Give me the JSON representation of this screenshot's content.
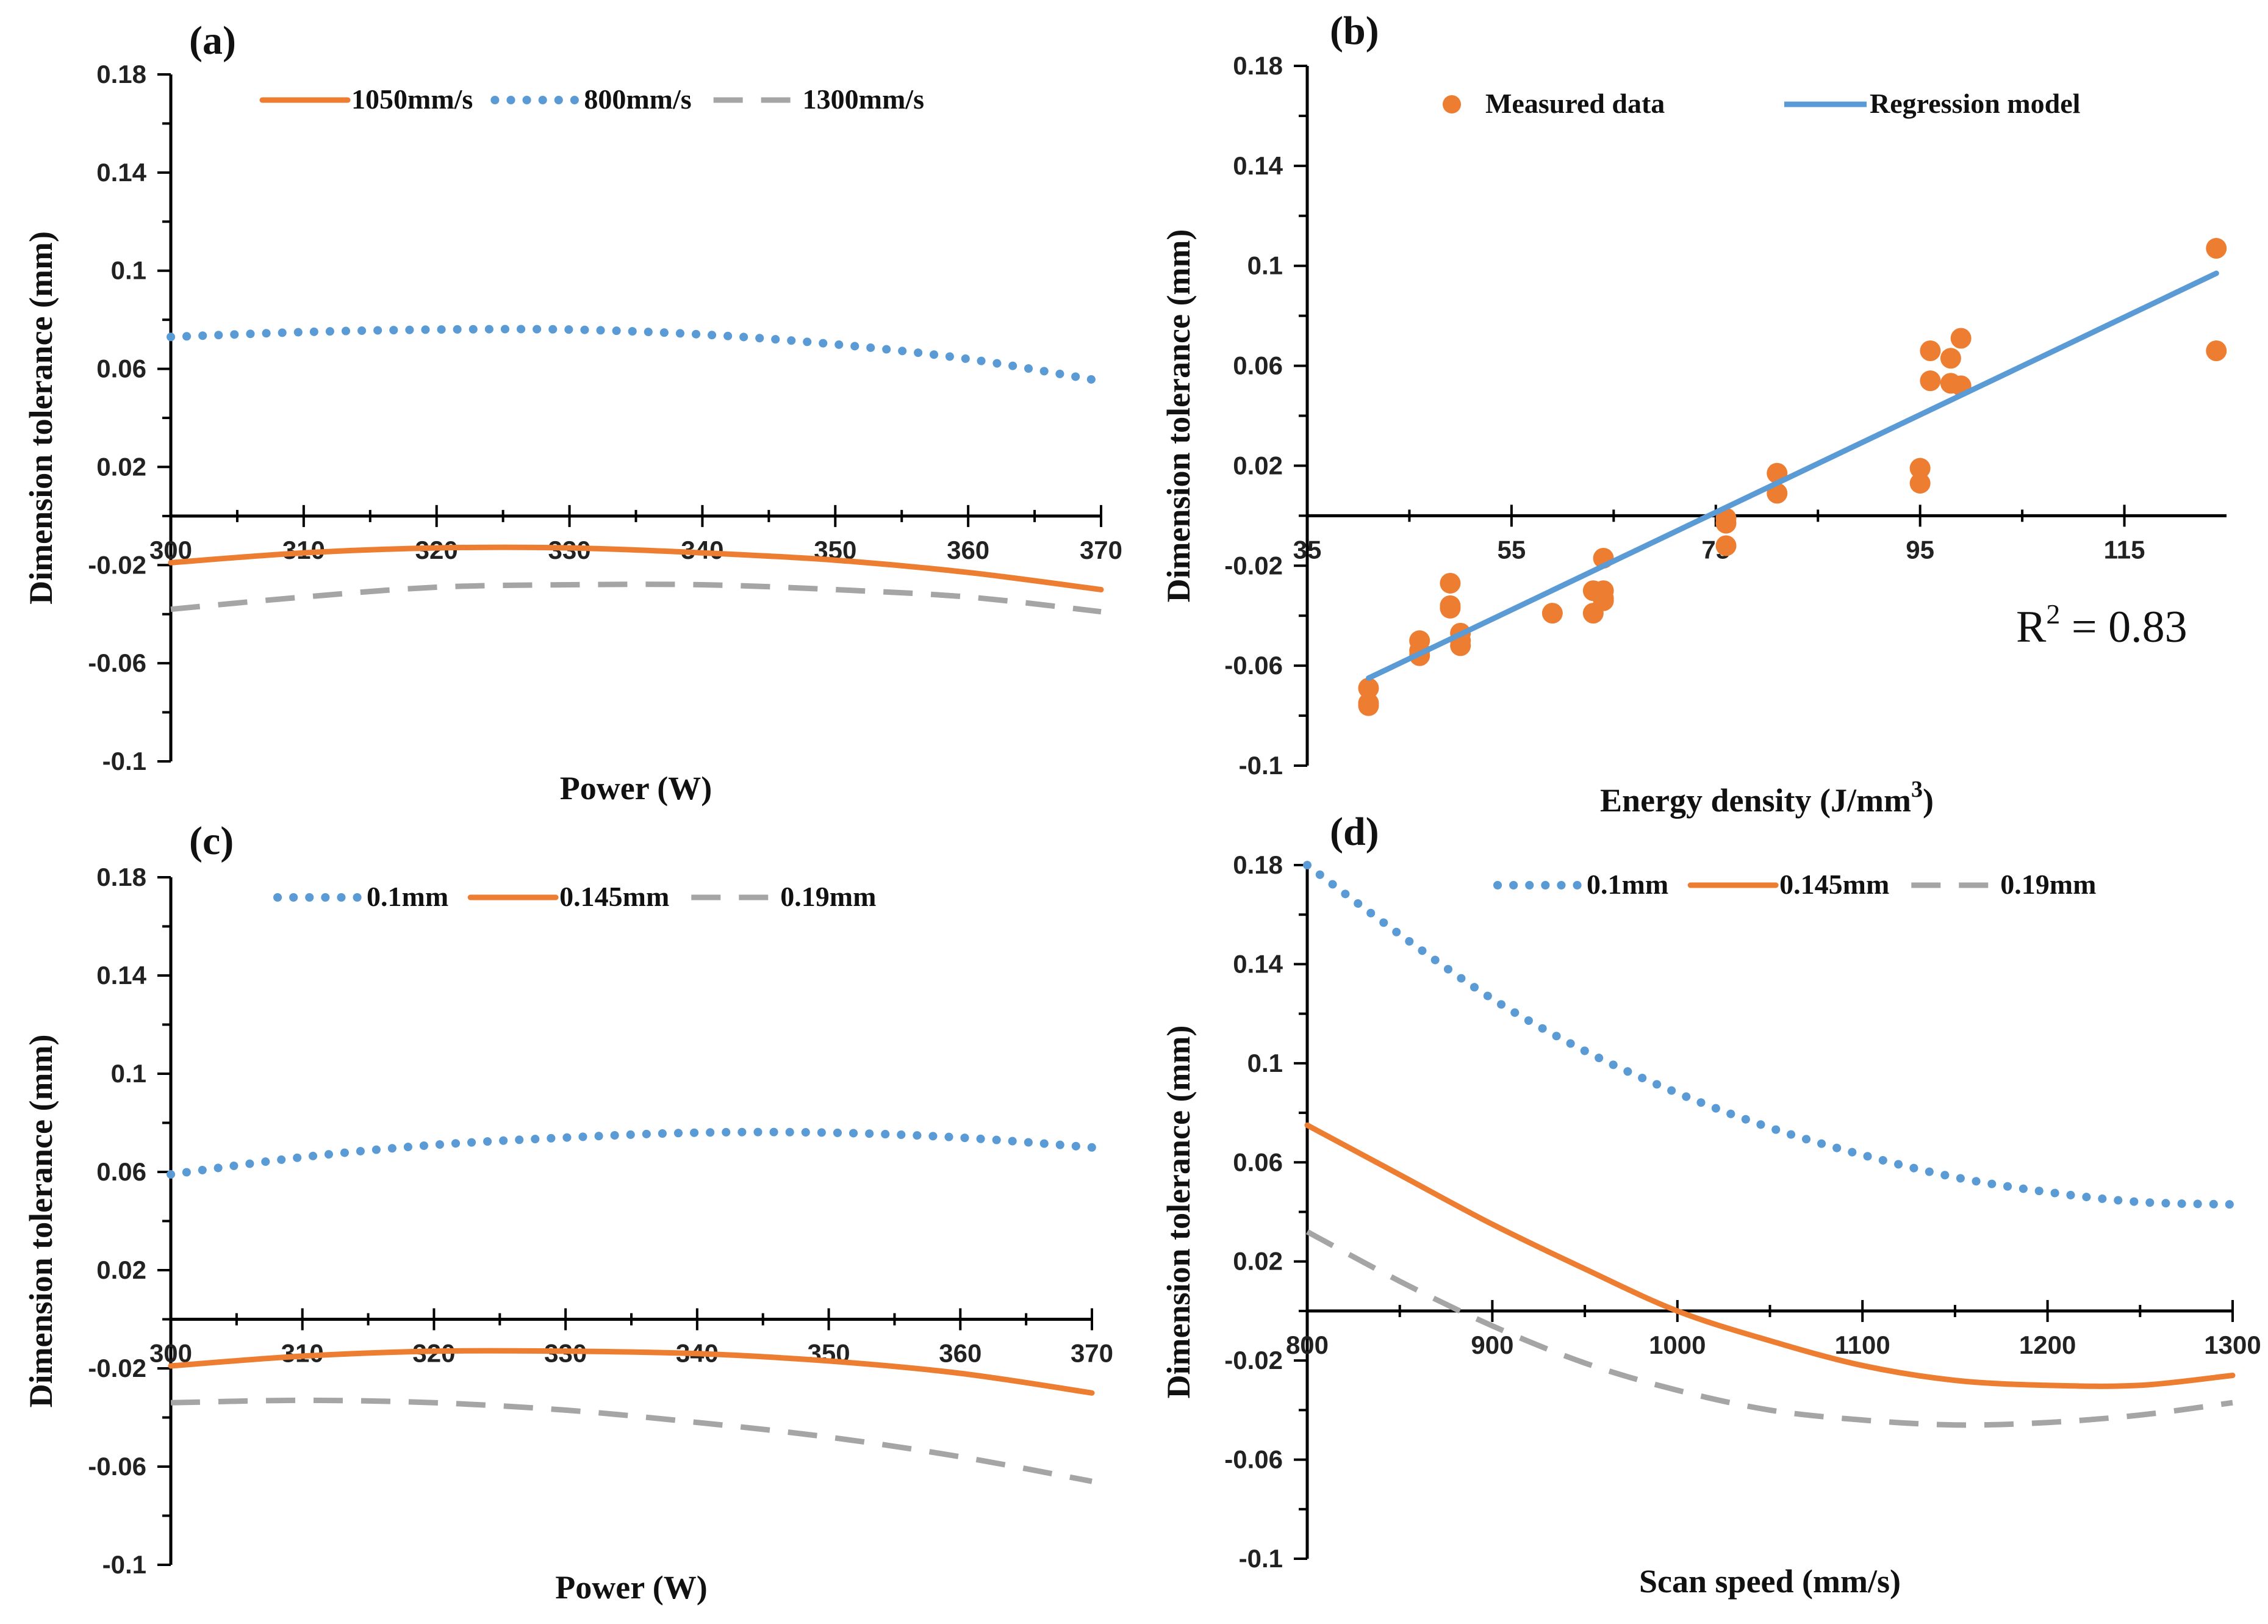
{
  "colors": {
    "orange": "#ED7D31",
    "blue": "#5B9BD5",
    "gray": "#A5A5A5",
    "axis": "#000000"
  },
  "chart_data": [
    {
      "panel": "(a)",
      "type": "line",
      "ylabel": "Dimension tolerance (mm)",
      "xlabel": "Power (W)",
      "xlim": [
        300,
        370
      ],
      "ylim": [
        -0.1,
        0.18
      ],
      "xticks": [
        "300",
        "310",
        "320",
        "330",
        "340",
        "350",
        "360",
        "370"
      ],
      "yticks": [
        "0.18",
        "0.14",
        "0.1",
        "0.06",
        "0.02",
        "-0.02",
        "-0.06",
        "-0.1"
      ],
      "legend_position": "top",
      "series": [
        {
          "name": "1050mm/s",
          "color": "orange",
          "style": "solid",
          "x": [
            300,
            310,
            320,
            330,
            340,
            350,
            360,
            370
          ],
          "values": [
            -0.019,
            -0.015,
            -0.013,
            -0.013,
            -0.015,
            -0.018,
            -0.023,
            -0.03
          ]
        },
        {
          "name": "800mm/s",
          "color": "blue",
          "style": "dotted",
          "x": [
            300,
            310,
            320,
            330,
            340,
            350,
            360,
            370
          ],
          "values": [
            0.073,
            0.075,
            0.076,
            0.076,
            0.074,
            0.07,
            0.064,
            0.055
          ]
        },
        {
          "name": "1300mm/s",
          "color": "gray",
          "style": "dashed",
          "x": [
            300,
            310,
            320,
            330,
            340,
            350,
            360,
            370
          ],
          "values": [
            -0.038,
            -0.033,
            -0.029,
            -0.028,
            -0.028,
            -0.03,
            -0.033,
            -0.039
          ]
        }
      ]
    },
    {
      "panel": "(b)",
      "type": "scatter",
      "ylabel": "Dimension tolerance (mm)",
      "xlabel": "Energy density (J/mm",
      "xlabel_sup": "3",
      "xlabel_end": ")",
      "xlim": [
        35,
        125
      ],
      "ylim": [
        -0.1,
        0.18
      ],
      "xticks": [
        "35",
        "55",
        "75",
        "95",
        "115"
      ],
      "yticks": [
        "0.18",
        "0.14",
        "0.1",
        "0.06",
        "0.02",
        "-0.02",
        "-0.06",
        "-0.1"
      ],
      "legend_position": "top",
      "annotation": {
        "r_label": "R",
        "r_sup": "2",
        "text": " = 0.83"
      },
      "series": [
        {
          "name": "Measured data",
          "color": "orange",
          "style": "markers",
          "x": [
            41,
            41,
            41,
            46,
            46,
            46,
            49,
            49,
            49,
            50,
            50,
            50,
            59,
            63,
            63,
            64,
            64,
            64,
            64,
            76,
            76,
            76,
            81,
            81,
            95,
            95,
            96,
            96,
            98,
            98,
            99,
            99,
            124,
            124
          ],
          "values": [
            -0.069,
            -0.075,
            -0.076,
            -0.05,
            -0.054,
            -0.056,
            -0.027,
            -0.036,
            -0.037,
            -0.047,
            -0.05,
            -0.052,
            -0.039,
            -0.03,
            -0.039,
            -0.017,
            -0.03,
            -0.033,
            -0.034,
            -0.001,
            -0.003,
            -0.012,
            0.017,
            0.009,
            0.019,
            0.013,
            0.066,
            0.054,
            0.063,
            0.053,
            0.071,
            0.052,
            0.107,
            0.066
          ]
        },
        {
          "name": "Regression model",
          "color": "blue",
          "style": "solid",
          "x": [
            41,
            124
          ],
          "values": [
            -0.065,
            0.097
          ]
        }
      ]
    },
    {
      "panel": "(c)",
      "type": "line",
      "ylabel": "Dimension tolerance (mm)",
      "xlabel": "Power (W)",
      "xlim": [
        300,
        370
      ],
      "ylim": [
        -0.1,
        0.18
      ],
      "xticks": [
        "300",
        "310",
        "320",
        "330",
        "340",
        "350",
        "360",
        "370"
      ],
      "yticks": [
        "0.18",
        "0.14",
        "0.1",
        "0.06",
        "0.02",
        "-0.02",
        "-0.06",
        "-0.1"
      ],
      "legend_position": "top",
      "series": [
        {
          "name": "0.1mm",
          "color": "blue",
          "style": "dotted",
          "x": [
            300,
            310,
            320,
            330,
            340,
            350,
            360,
            370
          ],
          "values": [
            0.059,
            0.066,
            0.071,
            0.074,
            0.076,
            0.076,
            0.074,
            0.07
          ]
        },
        {
          "name": "0.145mm",
          "color": "orange",
          "style": "solid",
          "x": [
            300,
            310,
            320,
            330,
            340,
            350,
            360,
            370
          ],
          "values": [
            -0.019,
            -0.015,
            -0.013,
            -0.013,
            -0.014,
            -0.017,
            -0.022,
            -0.03
          ]
        },
        {
          "name": "0.19mm",
          "color": "gray",
          "style": "dashed",
          "x": [
            300,
            310,
            320,
            330,
            340,
            350,
            360,
            370
          ],
          "values": [
            -0.034,
            -0.033,
            -0.034,
            -0.037,
            -0.042,
            -0.048,
            -0.056,
            -0.066
          ]
        }
      ]
    },
    {
      "panel": "(d)",
      "type": "line",
      "ylabel": "Dimension tolerance (mm)",
      "xlabel": "Scan speed (mm/s)",
      "xlim": [
        800,
        1300
      ],
      "ylim": [
        -0.1,
        0.18
      ],
      "xticks": [
        "800",
        "900",
        "1000",
        "1100",
        "1200",
        "1300"
      ],
      "yticks": [
        "0.18",
        "0.14",
        "0.1",
        "0.06",
        "0.02",
        "-0.02",
        "-0.06",
        "-0.1"
      ],
      "legend_position": "top",
      "series": [
        {
          "name": "0.1mm",
          "color": "blue",
          "style": "dotted",
          "x": [
            800,
            850,
            900,
            950,
            1000,
            1050,
            1100,
            1150,
            1200,
            1250,
            1300
          ],
          "values": [
            0.18,
            0.152,
            0.126,
            0.105,
            0.088,
            0.074,
            0.063,
            0.054,
            0.048,
            0.044,
            0.043
          ]
        },
        {
          "name": "0.145mm",
          "color": "orange",
          "style": "solid",
          "x": [
            800,
            850,
            900,
            950,
            1000,
            1050,
            1100,
            1150,
            1200,
            1250,
            1300
          ],
          "values": [
            0.075,
            0.055,
            0.035,
            0.017,
            0.0,
            -0.012,
            -0.022,
            -0.028,
            -0.03,
            -0.03,
            -0.026
          ]
        },
        {
          "name": "0.19mm",
          "color": "gray",
          "style": "dashed",
          "x": [
            800,
            850,
            900,
            950,
            1000,
            1050,
            1100,
            1150,
            1200,
            1250,
            1300
          ],
          "values": [
            0.032,
            0.012,
            -0.006,
            -0.021,
            -0.032,
            -0.04,
            -0.044,
            -0.046,
            -0.045,
            -0.042,
            -0.037
          ]
        }
      ]
    }
  ]
}
